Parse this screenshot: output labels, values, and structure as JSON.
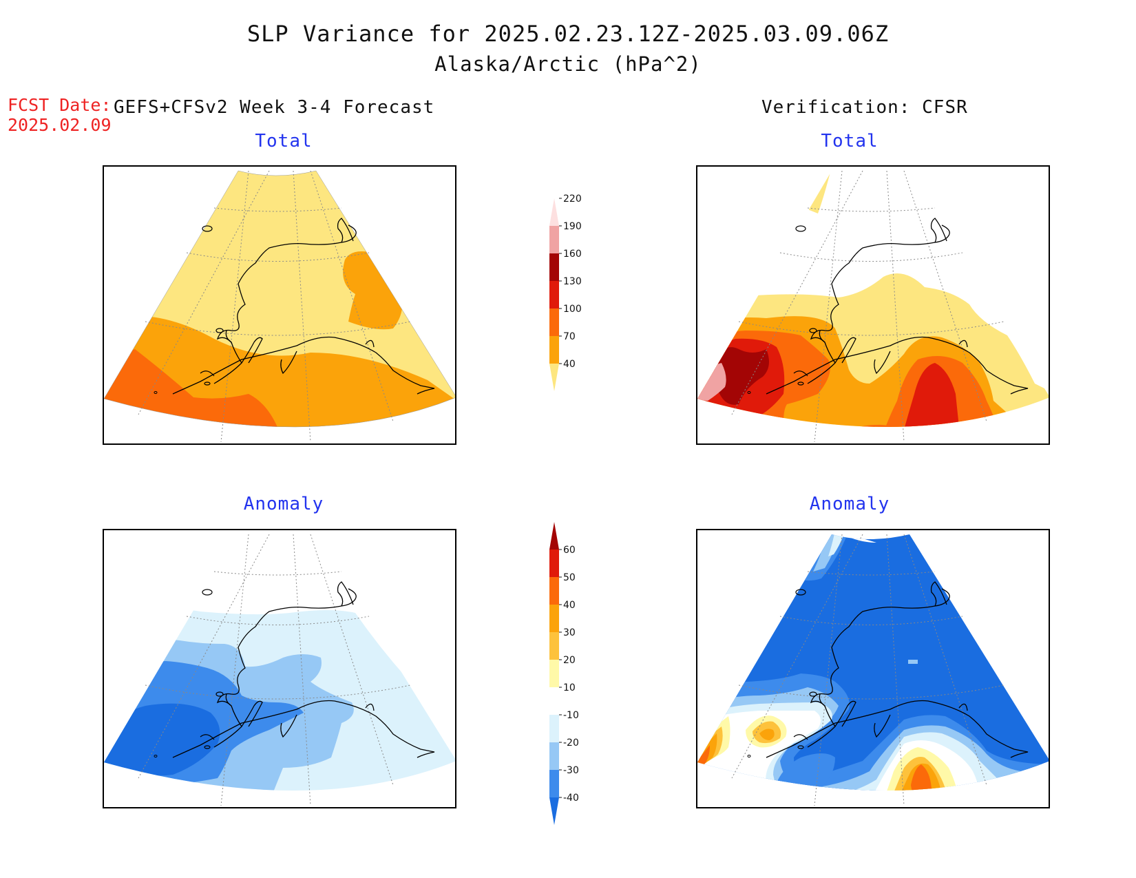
{
  "header": {
    "title_line1": "SLP Variance for 2025.02.23.12Z-2025.03.09.06Z",
    "title_line2": "Alaska/Arctic (hPa^2)",
    "fcst_label": "FCST Date:",
    "fcst_date": "2025.02.09",
    "left_model": "GEFS+CFSv2 Week 3-4 Forecast",
    "right_model": "Verification: CFSR"
  },
  "panels": {
    "tl": "Total",
    "tr": "Total",
    "bl": "Anomaly",
    "br": "Anomaly"
  },
  "colorbar_total": {
    "levels": [
      "40",
      "70",
      "100",
      "130",
      "160",
      "190",
      "220"
    ],
    "colors": [
      "#fde680",
      "#fba30a",
      "#fb6a0a",
      "#e01a0a",
      "#a30505",
      "#f0a3a3",
      "#fde0e0"
    ]
  },
  "colorbar_anomaly": {
    "levels": [
      "-40",
      "-30",
      "-20",
      "-10",
      "10",
      "20",
      "30",
      "40",
      "50",
      "60"
    ],
    "colors": [
      "#1a6de0",
      "#3d8bec",
      "#96c8f5",
      "#dcf2fc",
      "#ffffff",
      "#fff9a8",
      "#fdc23c",
      "#fba30a",
      "#fb6a0a",
      "#e01a0a",
      "#a30505"
    ]
  }
}
